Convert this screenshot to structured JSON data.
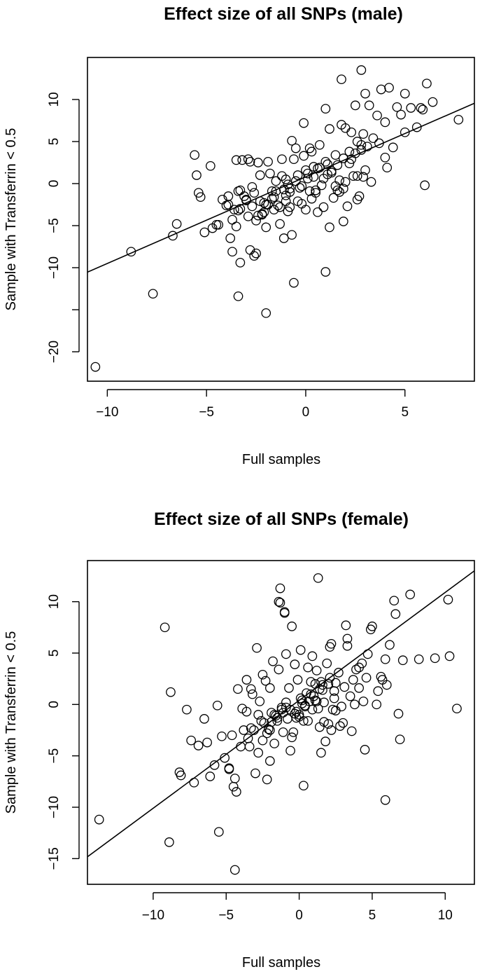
{
  "chart_data": [
    {
      "type": "scatter",
      "title": "Effect size of all SNPs (male)",
      "xlabel": "Full samples",
      "ylabel": "Sample with Transferrin < 0.5",
      "xlim": [
        -11,
        8.5
      ],
      "ylim": [
        -23.5,
        15
      ],
      "xticks": [
        -10,
        -5,
        0,
        5
      ],
      "yticks": [
        -20,
        -15,
        -10,
        -5,
        0,
        5,
        10
      ],
      "ytick_labels": [
        "−20",
        "",
        "−10",
        "−5",
        "0",
        "5",
        "10"
      ],
      "xtick_labels": [
        "−10",
        "−5",
        "0",
        "5"
      ],
      "fit_line": {
        "intercept": 0.8,
        "slope": 1.03
      },
      "grid": false,
      "legend": "none",
      "points": {
        "x": [
          -10.6,
          -8.8,
          -7.7,
          -6.7,
          -6.5,
          -5.6,
          -5.5,
          -5.4,
          -5.3,
          -5.1,
          -4.8,
          -4.7,
          -4.5,
          -4.4,
          -4.0,
          -3.9,
          -3.8,
          -3.7,
          -3.7,
          -3.5,
          -3.5,
          -3.4,
          -3.4,
          -3.3,
          -3.3,
          -3.2,
          -3.1,
          -3.0,
          -2.9,
          -2.8,
          -2.8,
          -2.7,
          -2.6,
          -2.5,
          -2.5,
          -2.4,
          -2.3,
          -2.2,
          -2.1,
          -2.0,
          -2.0,
          -1.9,
          -1.8,
          -1.7,
          -1.6,
          -1.5,
          -1.4,
          -1.3,
          -1.2,
          -1.1,
          -1.0,
          -0.9,
          -0.8,
          -0.7,
          -0.6,
          -0.5,
          -0.4,
          -0.3,
          -0.2,
          -0.1,
          0.0,
          0.1,
          0.2,
          0.3,
          0.4,
          0.5,
          0.6,
          0.7,
          0.8,
          0.9,
          1.0,
          1.1,
          1.2,
          1.3,
          1.4,
          1.5,
          1.6,
          1.7,
          1.8,
          1.9,
          2.0,
          2.1,
          2.2,
          2.3,
          2.4,
          2.5,
          2.6,
          2.7,
          2.8,
          2.9,
          3.0,
          3.2,
          3.4,
          3.6,
          3.8,
          4.0,
          4.2,
          4.4,
          4.6,
          4.8,
          5.0,
          5.3,
          5.6,
          5.9,
          6.1,
          6.4,
          7.7,
          -3.3,
          -3.0,
          -2.7,
          -2.4,
          -2.1,
          -1.9,
          -1.6,
          -1.3,
          -1.0,
          -0.8,
          -0.5,
          -0.2,
          0.1,
          0.4,
          0.7,
          1.0,
          1.3,
          1.6,
          1.9,
          2.2,
          2.5,
          2.8,
          3.1,
          -2.0,
          -0.7,
          1.0,
          -3.4,
          -1.2,
          1.8,
          2.8,
          3.3,
          4.1,
          5.0,
          5.8,
          6.0,
          -0.4,
          0.9,
          1.9,
          2.6,
          3.7,
          -4.2,
          -3.9,
          -3.6,
          -1.7,
          -0.9,
          0.2,
          1.1,
          2.0,
          3.0,
          4.0,
          -2.9,
          -2.6,
          -2.3,
          -1.5,
          -1.0,
          -0.6,
          -0.1,
          0.3,
          0.6,
          1.5,
          2.3,
          2.6,
          0.0,
          -1.1,
          1.2,
          -0.8,
          0.5,
          1.7,
          -2.2,
          2.9
        ],
        "y": [
          -21.8,
          -8.1,
          -13.1,
          -6.2,
          -4.8,
          3.4,
          1.0,
          -1.1,
          -1.6,
          -5.8,
          2.1,
          -5.3,
          -4.9,
          -4.9,
          -2.6,
          -1.5,
          -6.5,
          -4.3,
          -8.1,
          -5.1,
          2.8,
          -3.2,
          -13.4,
          -0.8,
          -9.4,
          2.8,
          -1.5,
          -2.0,
          2.9,
          2.6,
          -7.9,
          -0.4,
          -8.6,
          -8.3,
          -4.4,
          2.5,
          1.0,
          -3.7,
          -2.3,
          -15.4,
          -5.2,
          2.6,
          1.2,
          -0.9,
          -3.1,
          0.3,
          -2.6,
          -4.8,
          0.9,
          -0.7,
          -2.1,
          -3.3,
          -1.0,
          -6.1,
          -11.8,
          4.2,
          1.0,
          -0.5,
          -2.4,
          7.2,
          1.6,
          0.6,
          -0.9,
          3.8,
          2.0,
          -0.8,
          1.8,
          4.6,
          -0.2,
          0.6,
          -10.5,
          2.3,
          6.5,
          1.3,
          -1.7,
          3.4,
          -0.8,
          0.4,
          12.4,
          -4.5,
          6.6,
          -2.7,
          3.8,
          6.1,
          0.9,
          9.3,
          5.0,
          -1.5,
          13.5,
          5.9,
          10.7,
          9.3,
          5.4,
          8.1,
          11.2,
          7.3,
          11.4,
          4.3,
          9.1,
          8.2,
          10.7,
          9.0,
          6.7,
          8.8,
          11.9,
          9.7,
          7.6,
          -3.0,
          -1.9,
          -2.7,
          -3.8,
          -3.4,
          -2.5,
          -1.6,
          -2.8,
          -1.4,
          -0.6,
          0.3,
          -0.3,
          1.2,
          0.8,
          1.9,
          2.6,
          1.5,
          2.2,
          3.0,
          2.4,
          3.6,
          4.0,
          4.4,
          -2.5,
          5.1,
          8.9,
          -0.9,
          2.9,
          7.0,
          4.6,
          0.2,
          1.9,
          6.1,
          9.0,
          -0.2,
          -2.1,
          -2.8,
          -0.6,
          0.9,
          4.8,
          -1.9,
          -2.5,
          -3.1,
          -1.8,
          -0.1,
          4.2,
          1.1,
          0.2,
          1.6,
          3.1,
          -3.9,
          -1.1,
          -2.1,
          -0.9,
          0.5,
          2.9,
          3.3,
          -1.8,
          -3.4,
          -0.3,
          2.9,
          -1.9,
          -3.1,
          -6.5,
          -5.2,
          -2.8,
          -1.1,
          -1.0,
          -3.6,
          0.8
        ]
      }
    },
    {
      "type": "scatter",
      "title": "Effect size of all SNPs (female)",
      "xlabel": "Full samples",
      "ylabel": "Sample with Transferrin < 0.5",
      "xlim": [
        -14.5,
        12
      ],
      "ylim": [
        -17.5,
        14
      ],
      "xticks": [
        -10,
        -5,
        0,
        5,
        10
      ],
      "yticks": [
        -15,
        -10,
        -5,
        0,
        5,
        10
      ],
      "ytick_labels": [
        "−15",
        "−10",
        "−5",
        "0",
        "5",
        "10"
      ],
      "xtick_labels": [
        "−10",
        "−5",
        "0",
        "5",
        "10"
      ],
      "fit_line": {
        "intercept": 0.4,
        "slope": 1.05
      },
      "grid": false,
      "legend": "none",
      "points": {
        "x": [
          -13.7,
          -9.2,
          -8.9,
          -8.8,
          -8.2,
          -8.1,
          -7.7,
          -7.4,
          -7.2,
          -6.9,
          -6.5,
          -6.3,
          -6.1,
          -5.8,
          -5.6,
          -5.5,
          -5.3,
          -5.1,
          -4.8,
          -4.6,
          -4.5,
          -4.4,
          -4.3,
          -4.2,
          -4.0,
          -3.9,
          -3.8,
          -3.6,
          -3.5,
          -3.4,
          -3.3,
          -3.2,
          -3.0,
          -2.9,
          -2.8,
          -2.7,
          -2.5,
          -2.4,
          -2.3,
          -2.2,
          -2.1,
          -2.0,
          -1.9,
          -1.8,
          -1.7,
          -1.6,
          -1.5,
          -1.4,
          -1.3,
          -1.2,
          -1.1,
          -1.0,
          -0.9,
          -0.8,
          -0.7,
          -0.6,
          -0.5,
          -0.4,
          -0.3,
          -0.2,
          -0.1,
          0.0,
          0.1,
          0.2,
          0.3,
          0.4,
          0.5,
          0.6,
          0.7,
          0.8,
          0.9,
          1.0,
          1.1,
          1.2,
          1.3,
          1.4,
          1.5,
          1.6,
          1.7,
          1.8,
          1.9,
          2.0,
          2.1,
          2.2,
          2.3,
          2.4,
          2.5,
          2.7,
          2.9,
          3.1,
          3.3,
          3.5,
          3.7,
          3.9,
          4.1,
          4.3,
          4.5,
          4.7,
          5.0,
          5.3,
          5.6,
          5.9,
          6.2,
          6.5,
          6.8,
          7.1,
          7.6,
          8.2,
          9.3,
          10.2,
          10.3,
          10.8,
          -1.4,
          -1.3,
          -1.0,
          1.5,
          -0.2,
          -2.5,
          -4.4,
          -4.8,
          0.3,
          -3.3,
          -2.6,
          -2.0,
          -1.7,
          -1.1,
          -0.6,
          0.0,
          0.4,
          0.8,
          1.2,
          1.6,
          2.0,
          2.4,
          2.8,
          -3.1,
          -2.2,
          -1.5,
          -0.9,
          -0.3,
          0.6,
          1.4,
          2.2,
          3.0,
          3.8,
          4.6,
          5.4,
          6.0,
          6.6,
          -2.8,
          -1.9,
          -1.2,
          -0.5,
          0.2,
          0.9,
          1.7,
          2.5,
          3.3,
          4.1,
          4.9,
          5.7,
          5.9,
          6.9,
          -2.0,
          -0.9,
          0.1,
          1.1,
          2.1,
          3.2,
          4.4,
          -3.6,
          1.3,
          3.6
        ],
        "y": [
          -11.2,
          7.5,
          -13.4,
          1.2,
          -6.6,
          -6.9,
          -0.5,
          -3.5,
          -7.6,
          -4.0,
          -1.4,
          -3.7,
          -7.0,
          -5.9,
          -0.1,
          -12.4,
          -3.1,
          -5.2,
          -6.3,
          -3.0,
          -8.0,
          -16.1,
          -8.5,
          1.5,
          -4.1,
          -0.4,
          -2.5,
          -0.7,
          -3.3,
          -4.1,
          1.5,
          1.0,
          -6.7,
          5.5,
          -4.7,
          0.3,
          -3.5,
          -1.8,
          2.3,
          -7.3,
          -2.4,
          -5.5,
          -0.8,
          4.2,
          -3.8,
          -1.1,
          -1.6,
          3.4,
          11.3,
          -0.5,
          -2.7,
          8.9,
          -0.3,
          -1.4,
          1.6,
          -4.5,
          7.6,
          -2.7,
          3.9,
          -0.7,
          2.4,
          -1.2,
          5.3,
          0.4,
          -7.9,
          -0.2,
          1.1,
          3.6,
          0.3,
          2.2,
          4.7,
          0.8,
          0.4,
          3.3,
          12.3,
          1.5,
          -4.7,
          1.9,
          0.2,
          -3.6,
          4.0,
          -1.9,
          2.6,
          5.9,
          -0.5,
          1.3,
          2.1,
          3.1,
          -0.2,
          1.7,
          5.7,
          0.8,
          2.4,
          3.4,
          1.6,
          4.0,
          -4.4,
          4.9,
          7.6,
          0.0,
          2.7,
          4.4,
          5.8,
          10.1,
          -0.9,
          4.3,
          10.7,
          4.4,
          4.5,
          10.2,
          4.7,
          -0.4,
          10.0,
          9.9,
          9.0,
          2.2,
          -1.3,
          2.9,
          -7.2,
          -6.2,
          -1.6,
          -2.3,
          -1.6,
          -2.5,
          -1.0,
          -0.8,
          -0.5,
          -1.0,
          -0.1,
          1.0,
          0.3,
          1.4,
          2.0,
          0.6,
          -2.1,
          -2.5,
          -2.8,
          -1.3,
          0.2,
          -0.9,
          -1.6,
          -2.2,
          -2.5,
          -1.8,
          0.0,
          2.6,
          1.3,
          1.9,
          8.8,
          -1.0,
          -1.7,
          -0.3,
          -3.2,
          0.1,
          -0.5,
          -1.7,
          -0.6,
          6.4,
          3.6,
          7.3,
          2.4,
          -9.3,
          -3.4,
          1.6,
          4.9,
          0.6,
          2.0,
          5.6,
          7.7,
          0.3,
          2.4,
          -0.4,
          -2.6
        ]
      }
    }
  ]
}
